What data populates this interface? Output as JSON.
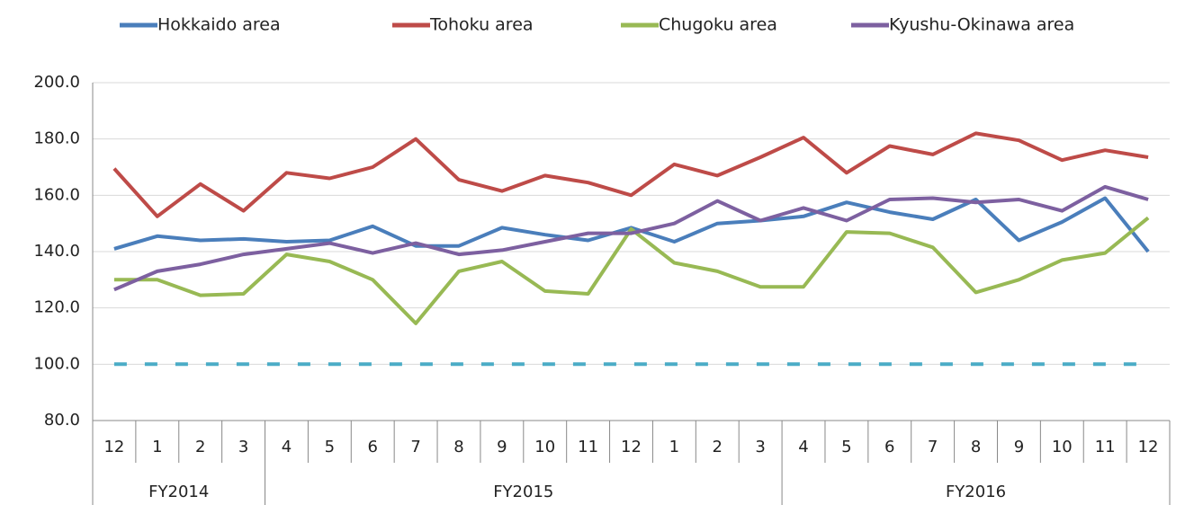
{
  "chart_data": {
    "type": "line",
    "categories": [
      "12",
      "1",
      "2",
      "3",
      "4",
      "5",
      "6",
      "7",
      "8",
      "9",
      "10",
      "11",
      "12",
      "1",
      "2",
      "3",
      "4",
      "5",
      "6",
      "7",
      "8",
      "9",
      "10",
      "11",
      "12"
    ],
    "groups": [
      {
        "name": "FY2014",
        "count": 4
      },
      {
        "name": "FY2015",
        "count": 12
      },
      {
        "name": "FY2016",
        "count": 9
      }
    ],
    "series": [
      {
        "name": "Hokkaido area",
        "color": "#4a7ebb",
        "values": [
          141,
          145.5,
          144,
          144.5,
          143.5,
          144,
          149,
          142,
          142,
          148.5,
          146,
          144,
          148.5,
          143.5,
          150,
          151,
          152.5,
          157.5,
          154,
          151.5,
          158.5,
          144,
          150.5,
          159,
          140
        ]
      },
      {
        "name": "Tohoku area",
        "color": "#be4b48",
        "values": [
          169.5,
          152.5,
          164,
          154.5,
          168,
          166,
          170,
          180,
          165.5,
          161.5,
          167,
          164.5,
          160,
          171,
          167,
          173.5,
          180.5,
          168,
          177.5,
          174.5,
          182,
          179.5,
          172.5,
          176,
          173.5
        ]
      },
      {
        "name": "Chugoku area",
        "color": "#98b954",
        "values": [
          130,
          130,
          124.5,
          125,
          139,
          136.5,
          130,
          114.5,
          133,
          136.5,
          126,
          125,
          148,
          136,
          133,
          127.5,
          127.5,
          147,
          146.5,
          141.5,
          125.5,
          130,
          137,
          139.5,
          152
        ]
      },
      {
        "name": "Kyushu-Okinawa area",
        "color": "#7d60a0",
        "values": [
          126.5,
          133,
          135.5,
          139,
          141,
          143,
          139.5,
          143,
          139,
          140.5,
          143.5,
          146.5,
          146.5,
          150,
          158,
          151,
          155.5,
          151,
          158.5,
          159,
          157.5,
          158.5,
          154.5,
          163,
          158.5
        ]
      },
      {
        "color": "#4bacc6",
        "dashed": true,
        "values": [
          100,
          100,
          100,
          100,
          100,
          100,
          100,
          100,
          100,
          100,
          100,
          100,
          100,
          100,
          100,
          100,
          100,
          100,
          100,
          100,
          100,
          100,
          100,
          100,
          100
        ]
      }
    ],
    "ylim": [
      80,
      200
    ],
    "yticks": [
      {
        "value": 80,
        "label": "80.0"
      },
      {
        "value": 100,
        "label": "100.0"
      },
      {
        "value": 120,
        "label": "120.0"
      },
      {
        "value": 140,
        "label": "140.0"
      },
      {
        "value": 160,
        "label": "160.0"
      },
      {
        "value": 180,
        "label": "180.0"
      },
      {
        "value": 200,
        "label": "200.0"
      }
    ],
    "grid": true,
    "legend": "top"
  }
}
